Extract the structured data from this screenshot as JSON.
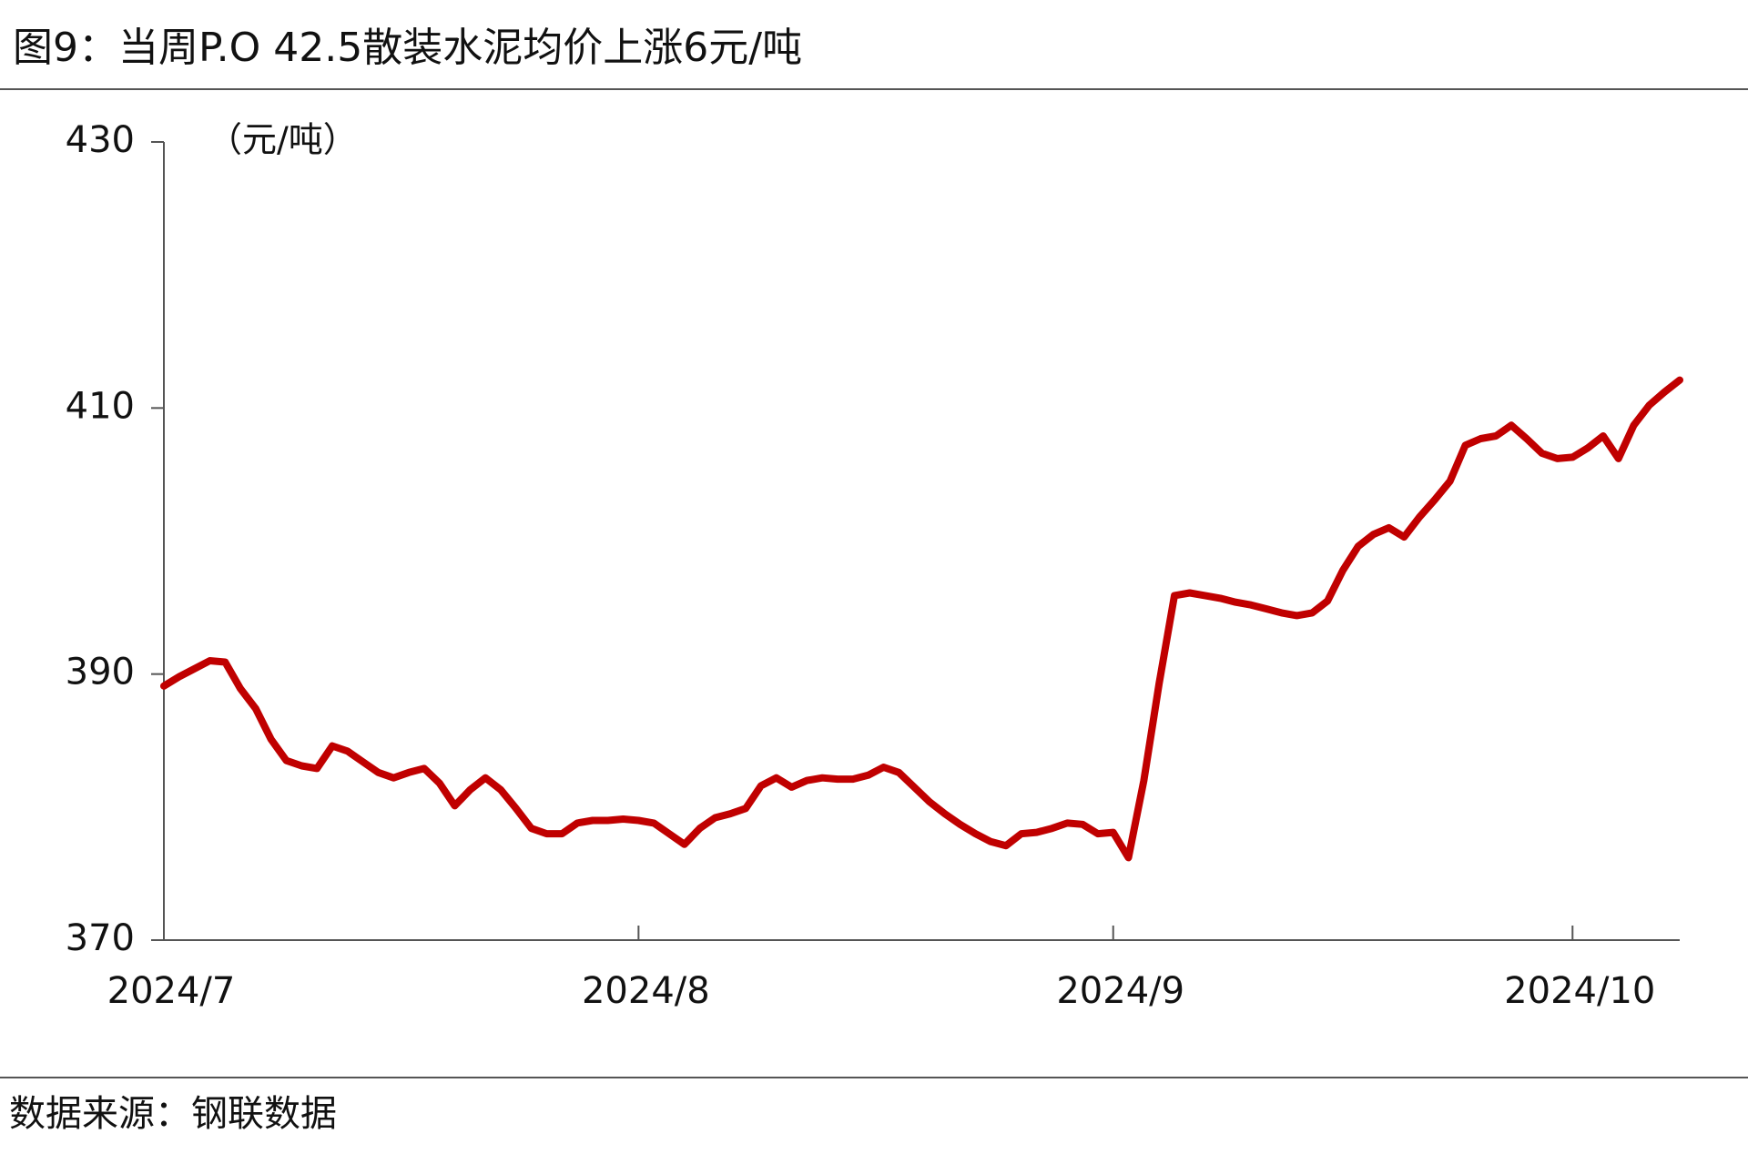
{
  "chart_data": {
    "type": "line",
    "title": "图9：当周P.O 42.5散装水泥均价上涨6元/吨",
    "y_label": "（元/吨）",
    "source": "数据来源：钢联数据",
    "x": [
      0,
      1,
      2,
      3,
      4,
      5,
      6,
      7,
      8,
      9,
      10,
      11,
      12,
      13,
      14,
      15,
      16,
      17,
      18,
      19,
      20,
      21,
      22,
      23,
      24,
      25,
      26,
      27,
      28,
      29,
      30,
      31,
      32,
      33,
      34,
      35,
      36,
      37,
      38,
      39,
      40,
      41,
      42,
      43,
      44,
      45,
      46,
      47,
      48,
      49,
      50,
      51,
      52,
      53,
      54,
      55,
      56,
      57,
      58,
      59,
      60,
      61,
      62,
      63,
      64,
      65,
      66,
      67,
      68,
      69,
      70,
      71,
      72,
      73,
      74,
      75,
      76,
      77,
      78,
      79,
      80,
      81,
      82,
      83,
      84,
      85,
      86,
      87,
      88,
      89,
      90,
      91,
      92,
      93,
      94,
      95,
      96,
      97,
      98,
      99
    ],
    "series": [
      {
        "color": "#c00000",
        "values": [
          389.1,
          389.8,
          390.4,
          391.0,
          390.9,
          388.9,
          387.4,
          385.1,
          383.5,
          383.1,
          382.9,
          384.6,
          384.2,
          383.4,
          382.6,
          382.2,
          382.6,
          382.9,
          381.8,
          380.1,
          381.3,
          382.2,
          381.3,
          379.9,
          378.4,
          378.0,
          378.0,
          378.8,
          379.0,
          379.0,
          379.1,
          379.0,
          378.8,
          378.0,
          377.2,
          378.4,
          379.2,
          379.5,
          379.9,
          381.6,
          382.2,
          381.5,
          382.0,
          382.2,
          382.1,
          382.1,
          382.4,
          383.0,
          382.6,
          381.5,
          380.4,
          379.5,
          378.7,
          378.0,
          377.4,
          377.1,
          378.0,
          378.1,
          378.4,
          378.8,
          378.7,
          378.0,
          378.1,
          376.2,
          382.0,
          389.3,
          395.9,
          396.1,
          395.9,
          395.7,
          395.4,
          395.2,
          394.9,
          394.6,
          394.4,
          394.6,
          395.5,
          397.8,
          399.6,
          400.5,
          401.0,
          400.3,
          401.8,
          403.1,
          404.5,
          407.2,
          407.7,
          407.9,
          408.7,
          407.7,
          406.6,
          406.2,
          406.3,
          407.0,
          407.9,
          406.2,
          408.7,
          410.2,
          411.2,
          412.1
        ]
      }
    ],
    "xlim": [
      0,
      99
    ],
    "xticks": [
      {
        "value": 0,
        "label": "2024/7"
      },
      {
        "value": 31,
        "label": "2024/8"
      },
      {
        "value": 62,
        "label": "2024/9"
      },
      {
        "value": 92,
        "label": "2024/10"
      }
    ],
    "ylim": [
      370,
      430
    ],
    "yticks": [
      370,
      390,
      410,
      430
    ]
  }
}
